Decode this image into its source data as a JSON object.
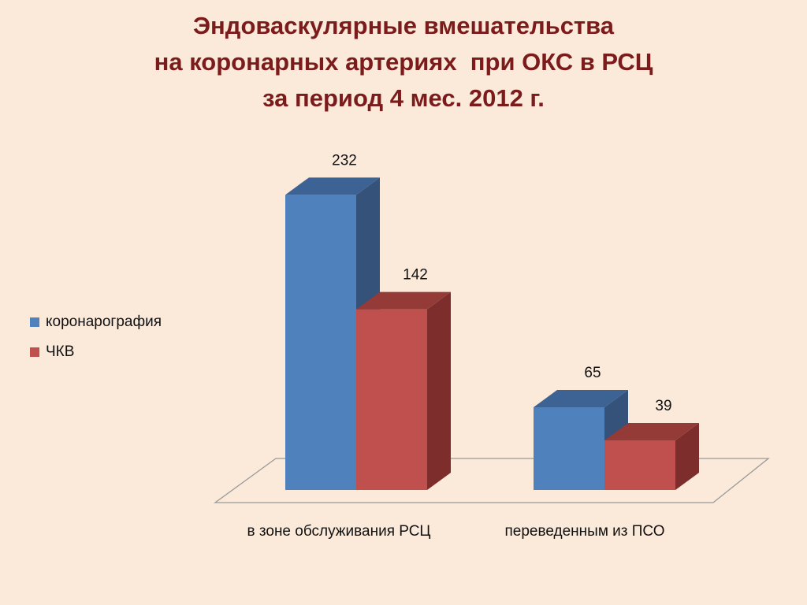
{
  "title_lines": [
    "Эндоваскулярные вмешательства",
    "на коронарных артериях  при ОКС в РСЦ",
    "за период 4 мес. 2012 г."
  ],
  "colors": {
    "background": "#fbe9da",
    "title": "#7b1b1b",
    "series1_front": "#4f81bd",
    "series1_side": "#34527a",
    "series1_top": "#3c6394",
    "series2_front": "#c0504d",
    "series2_side": "#7d2e2c",
    "series2_top": "#943a37"
  },
  "chart_data": {
    "type": "bar",
    "style": "3d-clustered-column",
    "categories": [
      "в зоне обслуживания РСЦ",
      "переведенным из ПСО"
    ],
    "series": [
      {
        "name": "коронарография",
        "values": [
          232,
          65
        ]
      },
      {
        "name": "ЧКВ",
        "values": [
          142,
          39
        ]
      }
    ],
    "data_labels": true,
    "grid": false,
    "legend_position": "left"
  }
}
